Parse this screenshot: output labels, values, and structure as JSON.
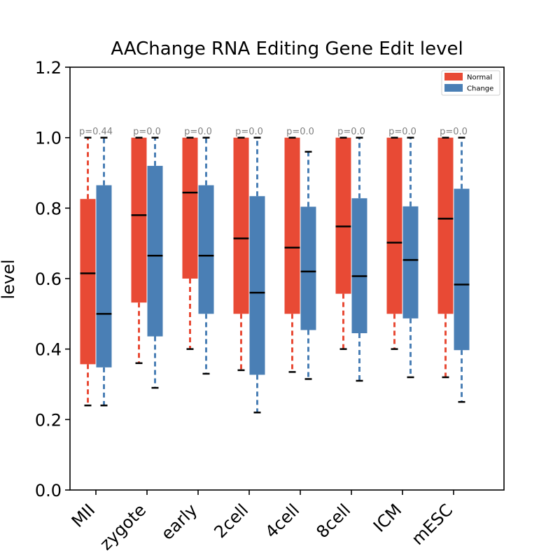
{
  "chart_data": {
    "type": "box",
    "title": "AAChange RNA Editing Gene Edit level",
    "xlabel": "",
    "ylabel": "level",
    "ylim": [
      0,
      1.2
    ],
    "yticks": [
      "0.0",
      "0.2",
      "0.4",
      "0.6",
      "0.8",
      "1.0",
      "1.2"
    ],
    "grid": false,
    "legend_position": "top-right",
    "categories": [
      "MII",
      "zygote",
      "early",
      "2cell",
      "4cell",
      "8cell",
      "ICM",
      "mESC"
    ],
    "p_values": [
      "p=0.44",
      "p=0.0",
      "p=0.0",
      "p=0.0",
      "p=0.0",
      "p=0.0",
      "p=0.0",
      "p=0.0"
    ],
    "series": [
      {
        "name": "Normal",
        "color": "#e84a35",
        "boxes": [
          {
            "whislo": 0.24,
            "q1": 0.357,
            "med": 0.615,
            "q3": 0.826,
            "whishi": 1.0
          },
          {
            "whislo": 0.36,
            "q1": 0.532,
            "med": 0.78,
            "q3": 1.0,
            "whishi": 1.0
          },
          {
            "whislo": 0.4,
            "q1": 0.6,
            "med": 0.844,
            "q3": 1.0,
            "whishi": 1.0
          },
          {
            "whislo": 0.34,
            "q1": 0.5,
            "med": 0.714,
            "q3": 1.0,
            "whishi": 1.0
          },
          {
            "whislo": 0.335,
            "q1": 0.5,
            "med": 0.688,
            "q3": 1.0,
            "whishi": 1.0
          },
          {
            "whislo": 0.4,
            "q1": 0.557,
            "med": 0.748,
            "q3": 1.0,
            "whishi": 1.0
          },
          {
            "whislo": 0.4,
            "q1": 0.5,
            "med": 0.702,
            "q3": 1.0,
            "whishi": 1.0
          },
          {
            "whislo": 0.32,
            "q1": 0.5,
            "med": 0.77,
            "q3": 1.0,
            "whishi": 1.0
          }
        ]
      },
      {
        "name": "Change",
        "color": "#4a7fb5",
        "boxes": [
          {
            "whislo": 0.24,
            "q1": 0.348,
            "med": 0.5,
            "q3": 0.865,
            "whishi": 1.0
          },
          {
            "whislo": 0.29,
            "q1": 0.436,
            "med": 0.665,
            "q3": 0.92,
            "whishi": 1.0
          },
          {
            "whislo": 0.33,
            "q1": 0.5,
            "med": 0.665,
            "q3": 0.865,
            "whishi": 1.0
          },
          {
            "whislo": 0.22,
            "q1": 0.327,
            "med": 0.56,
            "q3": 0.834,
            "whishi": 1.0
          },
          {
            "whislo": 0.315,
            "q1": 0.454,
            "med": 0.62,
            "q3": 0.804,
            "whishi": 0.96
          },
          {
            "whislo": 0.31,
            "q1": 0.445,
            "med": 0.607,
            "q3": 0.828,
            "whishi": 1.0
          },
          {
            "whislo": 0.32,
            "q1": 0.487,
            "med": 0.653,
            "q3": 0.805,
            "whishi": 1.0
          },
          {
            "whislo": 0.25,
            "q1": 0.397,
            "med": 0.583,
            "q3": 0.855,
            "whishi": 1.0
          }
        ]
      }
    ]
  }
}
